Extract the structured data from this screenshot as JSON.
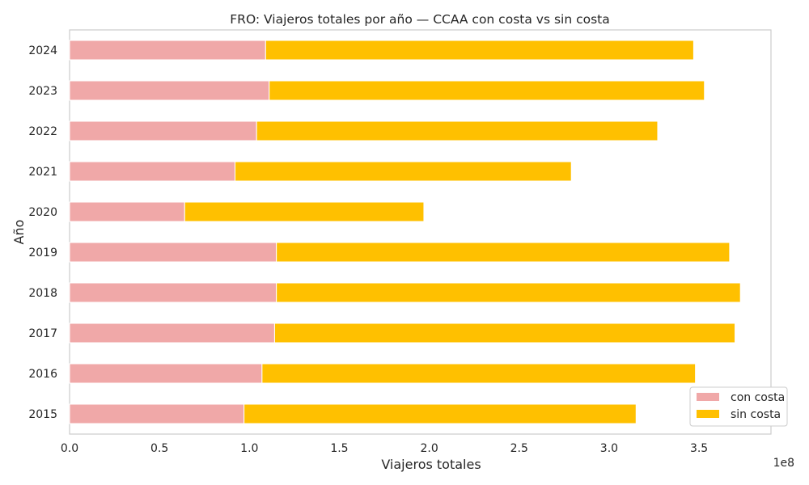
{
  "chart_data": {
    "type": "bar",
    "orientation": "horizontal",
    "stacked": true,
    "title": "FRO: Viajeros totales por año — CCAA con costa vs sin costa",
    "xlabel": "Viajeros totales",
    "ylabel": "Año",
    "x_offset_label": "1e8",
    "categories": [
      "2015",
      "2016",
      "2017",
      "2018",
      "2019",
      "2020",
      "2021",
      "2022",
      "2023",
      "2024"
    ],
    "series": [
      {
        "name": "con costa",
        "color": "#f0a8a8",
        "values": [
          97000000,
          107000000,
          114000000,
          115000000,
          115000000,
          64000000,
          92000000,
          104000000,
          111000000,
          109000000
        ]
      },
      {
        "name": "sin costa",
        "color": "#ffc000",
        "values": [
          218000000,
          241000000,
          256000000,
          258000000,
          252000000,
          133000000,
          187000000,
          223000000,
          242000000,
          238000000
        ]
      }
    ],
    "xlim": [
      0,
      390000000
    ],
    "xticks": [
      0,
      50000000,
      100000000,
      150000000,
      200000000,
      250000000,
      300000000,
      350000000
    ],
    "xtick_labels": [
      "0.0",
      "0.5",
      "1.0",
      "1.5",
      "2.0",
      "2.5",
      "3.0",
      "3.5"
    ],
    "grid": false,
    "legend_position": "bottom-right"
  }
}
